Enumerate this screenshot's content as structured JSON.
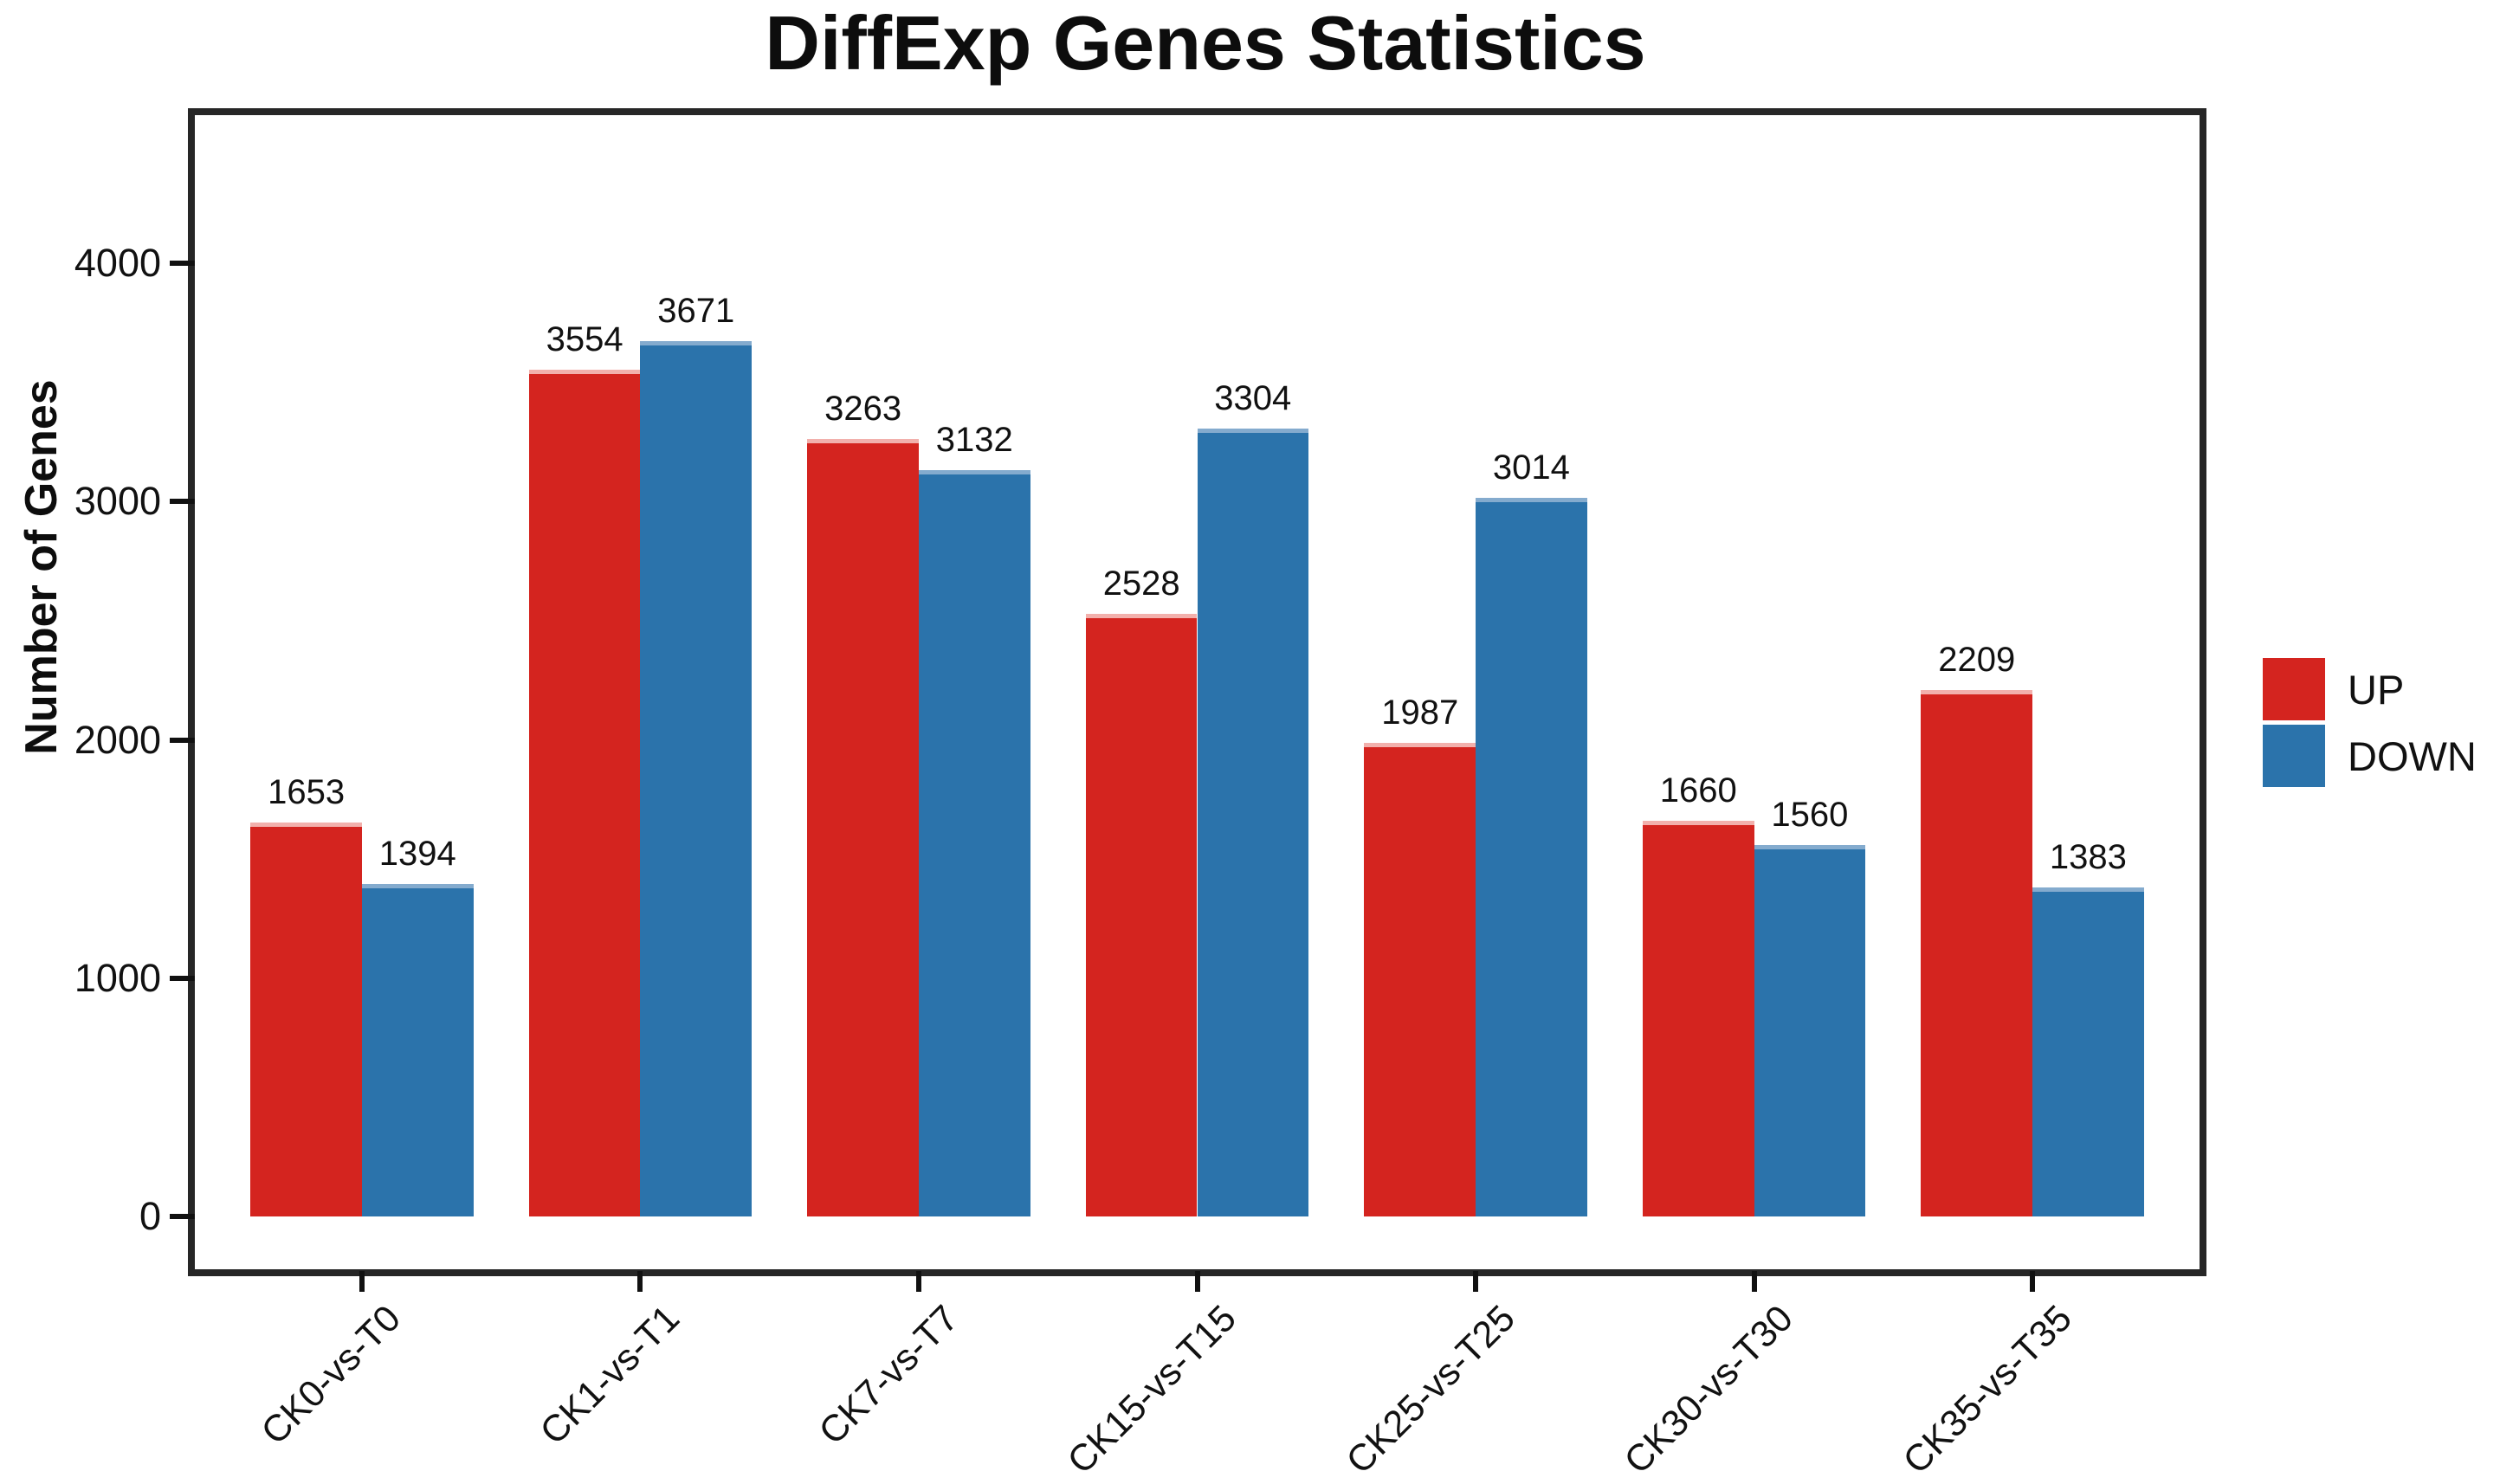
{
  "title": "DiffExp Genes Statistics",
  "y_axis": {
    "label": "Number of Genes",
    "ticks": [
      0,
      1000,
      2000,
      3000,
      4000
    ]
  },
  "legend": {
    "items": [
      {
        "label": "UP",
        "color": "#d4241f"
      },
      {
        "label": "DOWN",
        "color": "#2b73ab"
      }
    ]
  },
  "chart_data": {
    "type": "bar",
    "title": "DiffExp Genes Statistics",
    "xlabel": "",
    "ylabel": "Number of Genes",
    "categories": [
      "CK0-vs-T0",
      "CK1-vs-T1",
      "CK7-vs-T7",
      "CK15-vs-T15",
      "CK25-vs-T25",
      "CK30-vs-T30",
      "CK35-vs-T35"
    ],
    "series": [
      {
        "name": "UP",
        "color": "#d4241f",
        "edge_color": "#f2b0ac",
        "values": [
          1653,
          3554,
          3263,
          2528,
          1987,
          1660,
          2209
        ]
      },
      {
        "name": "DOWN",
        "color": "#2b73ab",
        "edge_color": "#84abce",
        "values": [
          1394,
          3671,
          3132,
          3304,
          3014,
          1560,
          1383
        ]
      }
    ],
    "bar_value_labels": true,
    "yticks": [
      0,
      1000,
      2000,
      3000,
      4000
    ],
    "ylim": [
      0,
      4400
    ],
    "expand_mult": 0.05,
    "grid": false,
    "legend_position": "right",
    "axis_color": "#262626",
    "background": "#ffffff"
  }
}
